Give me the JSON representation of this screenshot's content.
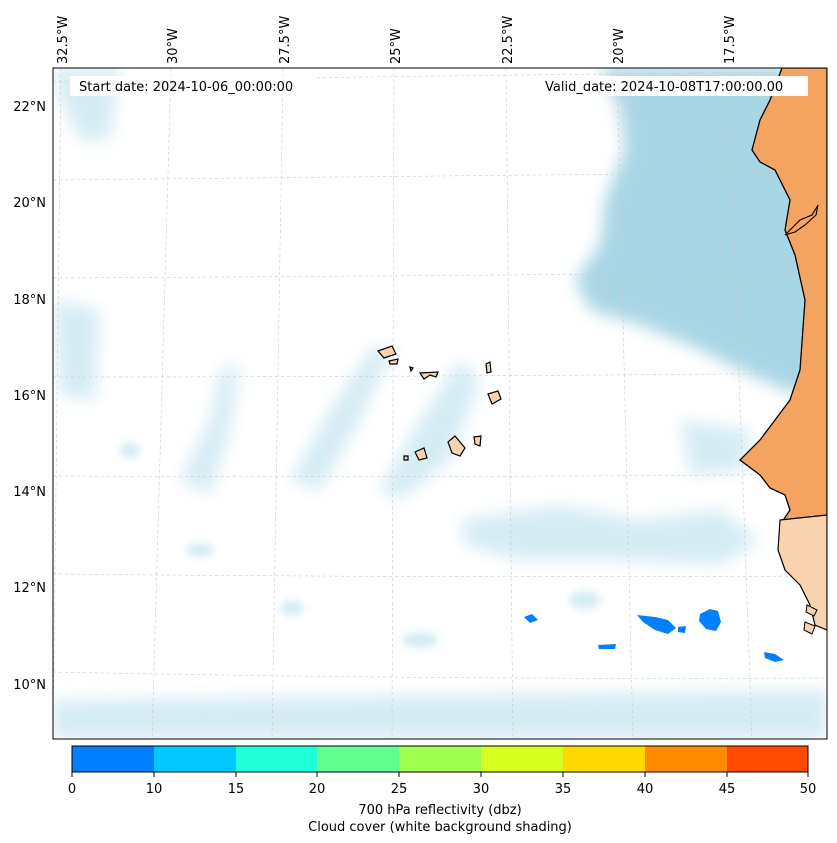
{
  "map": {
    "start_date": "Start date: 2024-10-06_00:00:00",
    "valid_date": "Valid_date: 2024-10-08T17:00:00.00",
    "lon_labels": [
      "32.5°W",
      "30°W",
      "27.5°W",
      "25°W",
      "22.5°W",
      "20°W",
      "17.5°W"
    ],
    "lat_labels": [
      "22°N",
      "20°N",
      "18°N",
      "16°N",
      "14°N",
      "12°N",
      "10°N"
    ],
    "colors": {
      "land_desert": "#f4a460",
      "land_light": "#f9d2b0",
      "cloud_dense": "#a9d6e5",
      "cloud_light": "#d5ecf4",
      "coastline": "#000000",
      "gridline": "#c8c8c8"
    }
  },
  "colorbar": {
    "label_line1": "700 hPa reflectivity (dbz)",
    "label_line2": "Cloud cover (white background shading)",
    "ticks": [
      "0",
      "10",
      "15",
      "20",
      "25",
      "30",
      "35",
      "40",
      "45",
      "50"
    ],
    "colors": [
      "#0080ff",
      "#00c8ff",
      "#20ffd8",
      "#60ff90",
      "#a0ff50",
      "#d8ff20",
      "#ffd800",
      "#ff8c00",
      "#ff4a00"
    ]
  }
}
